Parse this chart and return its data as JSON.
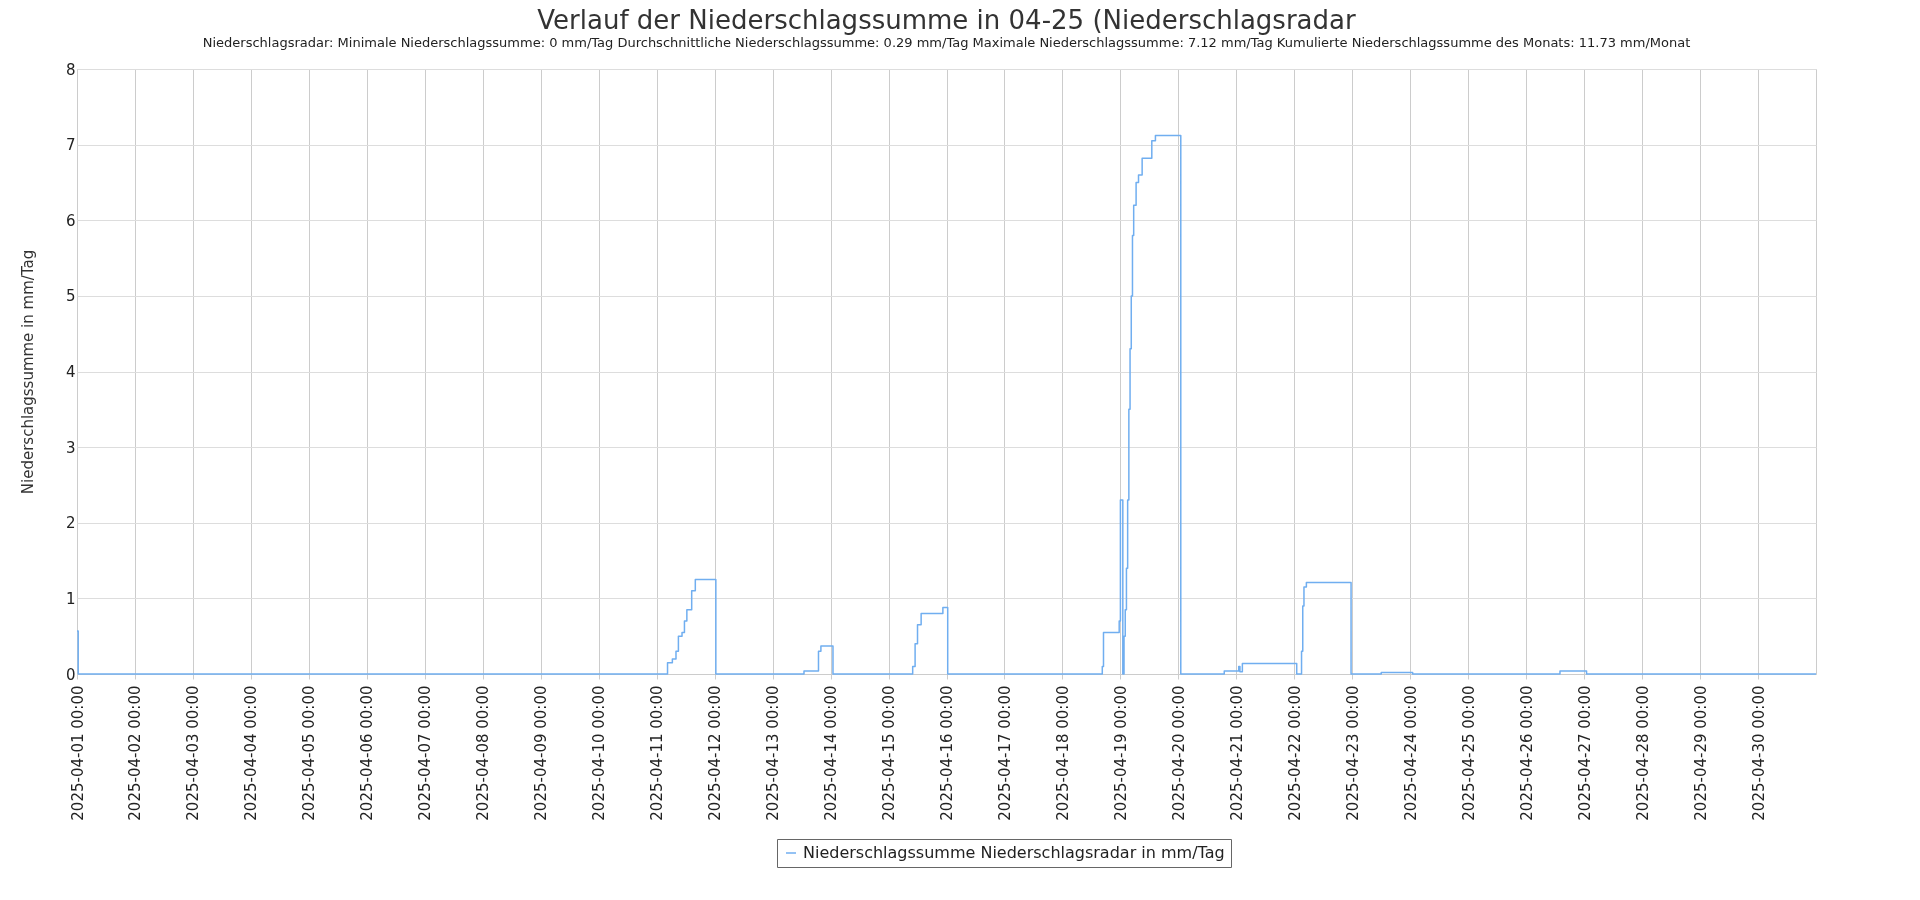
{
  "chart_data": {
    "type": "step",
    "title": "Verlauf der Niederschlagssumme in 04-25 (Niederschlagsradar",
    "subtitle": "Niederschlagsradar: Minimale Niederschlagssumme: 0 mm/Tag      Durchschnittliche Niederschlagssumme: 0.29 mm/Tag      Maximale Niederschlagssumme: 7.12 mm/Tag      Kumulierte Niederschlagssumme des Monats: 11.73 mm/Monat",
    "ylabel": "Niederschlagssumme in mm/Tag",
    "x": [
      "2025-04-01T00:00",
      "2025-04-01T00:30",
      "2025-04-11T04:30",
      "2025-04-11T06:30",
      "2025-04-11T08:00",
      "2025-04-11T09:00",
      "2025-04-11T10:30",
      "2025-04-11T11:30",
      "2025-04-11T12:30",
      "2025-04-11T14:30",
      "2025-04-11T16:00",
      "2025-04-12T00:30",
      "2025-04-13T13:00",
      "2025-04-13T19:00",
      "2025-04-13T20:00",
      "2025-04-14T01:00",
      "2025-04-15T10:00",
      "2025-04-15T11:00",
      "2025-04-15T12:00",
      "2025-04-15T13:30",
      "2025-04-15T22:30",
      "2025-04-16T00:30",
      "2025-04-18T16:30",
      "2025-04-18T17:00",
      "2025-04-18T23:30",
      "2025-04-19T00:00",
      "2025-04-19T01:00",
      "2025-04-19T01:30",
      "2025-04-19T02:00",
      "2025-04-19T02:30",
      "2025-04-19T03:00",
      "2025-04-19T03:30",
      "2025-04-19T04:00",
      "2025-04-19T04:30",
      "2025-04-19T05:00",
      "2025-04-19T05:30",
      "2025-04-19T06:30",
      "2025-04-19T07:30",
      "2025-04-19T09:00",
      "2025-04-19T13:00",
      "2025-04-19T14:30",
      "2025-04-20T01:00",
      "2025-04-20T19:00",
      "2025-04-21T01:00",
      "2025-04-21T01:30",
      "2025-04-21T02:30",
      "2025-04-22T01:00",
      "2025-04-22T03:00",
      "2025-04-22T03:30",
      "2025-04-22T04:00",
      "2025-04-22T05:00",
      "2025-04-22T23:30",
      "2025-04-23T12:00",
      "2025-04-24T01:00",
      "2025-04-26T14:00",
      "2025-04-27T01:00",
      "2025-05-01T00:00"
    ],
    "series": [
      {
        "name": "Niederschlagssumme Niederschlagsradar in mm/Tag",
        "color": "#70aef0",
        "values": [
          0.57,
          0,
          0.15,
          0.2,
          0.3,
          0.5,
          0.55,
          0.7,
          0.85,
          1.1,
          1.25,
          0,
          0.04,
          0.3,
          0.37,
          0,
          0.1,
          0.4,
          0.65,
          0.8,
          0.88,
          0,
          0.1,
          0.55,
          0.7,
          2.3,
          0,
          0.5,
          0.85,
          1.4,
          2.3,
          3.5,
          4.3,
          5,
          5.8,
          6.2,
          6.5,
          6.6,
          6.82,
          7.05,
          7.12,
          0,
          0.04,
          0.1,
          0.03,
          0.14,
          0,
          0.3,
          0.9,
          1.15,
          1.21,
          0,
          0.02,
          0,
          0.04,
          0,
          0
        ]
      }
    ],
    "xlim": [
      "2025-04-01T00:00",
      "2025-05-01T00:00"
    ],
    "xticks": [
      {
        "value": "2025-04-01T00:00",
        "label": "2025-04-01 00:00"
      },
      {
        "value": "2025-04-02T00:00",
        "label": "2025-04-02 00:00"
      },
      {
        "value": "2025-04-03T00:00",
        "label": "2025-04-03 00:00"
      },
      {
        "value": "2025-04-04T00:00",
        "label": "2025-04-04 00:00"
      },
      {
        "value": "2025-04-05T00:00",
        "label": "2025-04-05 00:00"
      },
      {
        "value": "2025-04-06T00:00",
        "label": "2025-04-06 00:00"
      },
      {
        "value": "2025-04-07T00:00",
        "label": "2025-04-07 00:00"
      },
      {
        "value": "2025-04-08T00:00",
        "label": "2025-04-08 00:00"
      },
      {
        "value": "2025-04-09T00:00",
        "label": "2025-04-09 00:00"
      },
      {
        "value": "2025-04-10T00:00",
        "label": "2025-04-10 00:00"
      },
      {
        "value": "2025-04-11T00:00",
        "label": "2025-04-11 00:00"
      },
      {
        "value": "2025-04-12T00:00",
        "label": "2025-04-12 00:00"
      },
      {
        "value": "2025-04-13T00:00",
        "label": "2025-04-13 00:00"
      },
      {
        "value": "2025-04-14T00:00",
        "label": "2025-04-14 00:00"
      },
      {
        "value": "2025-04-15T00:00",
        "label": "2025-04-15 00:00"
      },
      {
        "value": "2025-04-16T00:00",
        "label": "2025-04-16 00:00"
      },
      {
        "value": "2025-04-17T00:00",
        "label": "2025-04-17 00:00"
      },
      {
        "value": "2025-04-18T00:00",
        "label": "2025-04-18 00:00"
      },
      {
        "value": "2025-04-19T00:00",
        "label": "2025-04-19 00:00"
      },
      {
        "value": "2025-04-20T00:00",
        "label": "2025-04-20 00:00"
      },
      {
        "value": "2025-04-21T00:00",
        "label": "2025-04-21 00:00"
      },
      {
        "value": "2025-04-22T00:00",
        "label": "2025-04-22 00:00"
      },
      {
        "value": "2025-04-23T00:00",
        "label": "2025-04-23 00:00"
      },
      {
        "value": "2025-04-24T00:00",
        "label": "2025-04-24 00:00"
      },
      {
        "value": "2025-04-25T00:00",
        "label": "2025-04-25 00:00"
      },
      {
        "value": "2025-04-26T00:00",
        "label": "2025-04-26 00:00"
      },
      {
        "value": "2025-04-27T00:00",
        "label": "2025-04-27 00:00"
      },
      {
        "value": "2025-04-28T00:00",
        "label": "2025-04-28 00:00"
      },
      {
        "value": "2025-04-29T00:00",
        "label": "2025-04-29 00:00"
      },
      {
        "value": "2025-04-30T00:00",
        "label": "2025-04-30 00:00"
      }
    ],
    "ylim": [
      0,
      8
    ],
    "yticks": [
      0,
      1,
      2,
      3,
      4,
      5,
      6,
      7,
      8
    ],
    "grid": true,
    "legend": "bottom",
    "marker": "none",
    "line_style": "solid"
  }
}
